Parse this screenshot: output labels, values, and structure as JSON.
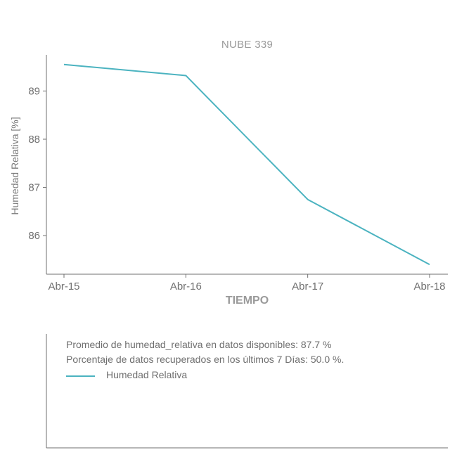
{
  "chart_data": {
    "type": "line",
    "title": "NUBE 339",
    "xlabel": "TIEMPO",
    "ylabel": "Humedad Relativa [%]",
    "categories": [
      "Abr-15",
      "Abr-16",
      "Abr-17",
      "Abr-18"
    ],
    "series": [
      {
        "name": "Humedad Relativa",
        "values": [
          89.55,
          89.32,
          86.75,
          85.4
        ],
        "color": "#4bb3c0"
      }
    ],
    "ylim": [
      85.2,
      89.75
    ],
    "yticks": [
      86,
      87,
      88,
      89
    ],
    "grid": false,
    "legend_position": "lower panel"
  },
  "info": {
    "average_line": "Promedio de humedad_relativa en datos disponibles: 87.7 %",
    "percentage_line": "Porcentaje de datos recuperados en los últimos 7 Días: 50.0 %."
  }
}
